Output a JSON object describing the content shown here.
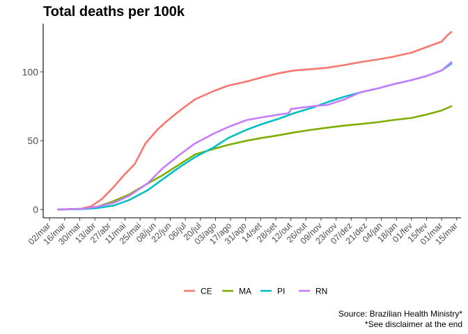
{
  "chart_data": {
    "type": "line",
    "title": "Total deaths per 100k",
    "xlabel": "",
    "ylabel": "",
    "x_ticks": [
      "02/mar",
      "16/mar",
      "30/mar",
      "13/abr",
      "27/abr",
      "11/mai",
      "25/mai",
      "08/jun",
      "22/jun",
      "06/jul",
      "20/jul",
      "03/ago",
      "17/ago",
      "31/ago",
      "14/set",
      "28/set",
      "12/out",
      "26/out",
      "09/nov",
      "23/nov",
      "07/dez",
      "21/dez",
      "04/jan",
      "18/jan",
      "01/fev",
      "15/fev",
      "01/mar",
      "15/mar"
    ],
    "x_range": [
      "2020-02-25",
      "2021-03-19"
    ],
    "y_ticks": [
      0,
      50,
      100
    ],
    "ylim": [
      -6,
      135
    ],
    "grid": false,
    "legend": "bottom",
    "series": [
      {
        "name": "CE",
        "color": "#F8766D",
        "points": [
          [
            "2020-03-10",
            0
          ],
          [
            "2020-03-31",
            0.5
          ],
          [
            "2020-04-10",
            2.5
          ],
          [
            "2020-04-20",
            8
          ],
          [
            "2020-04-30",
            16
          ],
          [
            "2020-05-10",
            25
          ],
          [
            "2020-05-20",
            33
          ],
          [
            "2020-05-30",
            48
          ],
          [
            "2020-06-10",
            58
          ],
          [
            "2020-06-20",
            65
          ],
          [
            "2020-07-01",
            72
          ],
          [
            "2020-07-15",
            80
          ],
          [
            "2020-08-01",
            86
          ],
          [
            "2020-08-15",
            90
          ],
          [
            "2020-09-01",
            93
          ],
          [
            "2020-09-15",
            96
          ],
          [
            "2020-10-01",
            99
          ],
          [
            "2020-10-15",
            101
          ],
          [
            "2020-11-01",
            102
          ],
          [
            "2020-11-15",
            103
          ],
          [
            "2020-12-01",
            105
          ],
          [
            "2020-12-15",
            107
          ],
          [
            "2021-01-01",
            109
          ],
          [
            "2021-01-15",
            111
          ],
          [
            "2021-02-01",
            114
          ],
          [
            "2021-02-15",
            118
          ],
          [
            "2021-03-01",
            122
          ],
          [
            "2021-03-07",
            127
          ],
          [
            "2021-03-10",
            129
          ]
        ]
      },
      {
        "name": "MA",
        "color": "#7CAE00",
        "points": [
          [
            "2020-03-10",
            0
          ],
          [
            "2020-04-01",
            0.5
          ],
          [
            "2020-04-15",
            2
          ],
          [
            "2020-04-30",
            6
          ],
          [
            "2020-05-15",
            11
          ],
          [
            "2020-05-30",
            18
          ],
          [
            "2020-06-15",
            25
          ],
          [
            "2020-07-01",
            33
          ],
          [
            "2020-07-15",
            40
          ],
          [
            "2020-08-01",
            44
          ],
          [
            "2020-08-15",
            47
          ],
          [
            "2020-09-01",
            50
          ],
          [
            "2020-09-15",
            52
          ],
          [
            "2020-10-01",
            54
          ],
          [
            "2020-10-15",
            56
          ],
          [
            "2020-11-01",
            58
          ],
          [
            "2020-11-15",
            59.5
          ],
          [
            "2020-12-01",
            61
          ],
          [
            "2020-12-15",
            62
          ],
          [
            "2021-01-01",
            63.5
          ],
          [
            "2021-01-15",
            65
          ],
          [
            "2021-02-01",
            66.5
          ],
          [
            "2021-02-15",
            69
          ],
          [
            "2021-03-01",
            72
          ],
          [
            "2021-03-10",
            75
          ]
        ]
      },
      {
        "name": "PI",
        "color": "#00BFC4",
        "points": [
          [
            "2020-03-10",
            0
          ],
          [
            "2020-04-01",
            0.3
          ],
          [
            "2020-04-15",
            1
          ],
          [
            "2020-05-01",
            3
          ],
          [
            "2020-05-15",
            7
          ],
          [
            "2020-06-01",
            14
          ],
          [
            "2020-06-15",
            22
          ],
          [
            "2020-07-01",
            31
          ],
          [
            "2020-07-15",
            38
          ],
          [
            "2020-08-01",
            45
          ],
          [
            "2020-08-15",
            52
          ],
          [
            "2020-09-01",
            58
          ],
          [
            "2020-09-15",
            62
          ],
          [
            "2020-10-01",
            66
          ],
          [
            "2020-10-15",
            70
          ],
          [
            "2020-11-01",
            74
          ],
          [
            "2020-11-15",
            78
          ],
          [
            "2020-12-01",
            82
          ],
          [
            "2020-12-15",
            85
          ],
          [
            "2021-01-01",
            88
          ],
          [
            "2021-01-15",
            91
          ],
          [
            "2021-02-01",
            94
          ],
          [
            "2021-02-15",
            97
          ],
          [
            "2021-03-01",
            101
          ],
          [
            "2021-03-10",
            106
          ]
        ]
      },
      {
        "name": "RN",
        "color": "#C77CFF",
        "points": [
          [
            "2020-03-10",
            0
          ],
          [
            "2020-04-01",
            0.5
          ],
          [
            "2020-04-15",
            2
          ],
          [
            "2020-05-01",
            5
          ],
          [
            "2020-05-15",
            10
          ],
          [
            "2020-06-01",
            19
          ],
          [
            "2020-06-15",
            30
          ],
          [
            "2020-07-01",
            40
          ],
          [
            "2020-07-15",
            48
          ],
          [
            "2020-08-01",
            55
          ],
          [
            "2020-08-15",
            60
          ],
          [
            "2020-09-01",
            65
          ],
          [
            "2020-09-15",
            67
          ],
          [
            "2020-10-01",
            69
          ],
          [
            "2020-10-10",
            70
          ],
          [
            "2020-10-12",
            73
          ],
          [
            "2020-11-01",
            75
          ],
          [
            "2020-11-15",
            76
          ],
          [
            "2020-12-01",
            80
          ],
          [
            "2020-12-15",
            85
          ],
          [
            "2021-01-01",
            88
          ],
          [
            "2021-01-15",
            91
          ],
          [
            "2021-02-01",
            94
          ],
          [
            "2021-02-15",
            97
          ],
          [
            "2021-03-01",
            101
          ],
          [
            "2021-03-10",
            107
          ]
        ]
      }
    ]
  },
  "legend_items": [
    "CE",
    "MA",
    "PI",
    "RN"
  ],
  "caption_lines": [
    "Source: Brazilian Health Ministry*",
    "*See disclaimer at the end"
  ]
}
